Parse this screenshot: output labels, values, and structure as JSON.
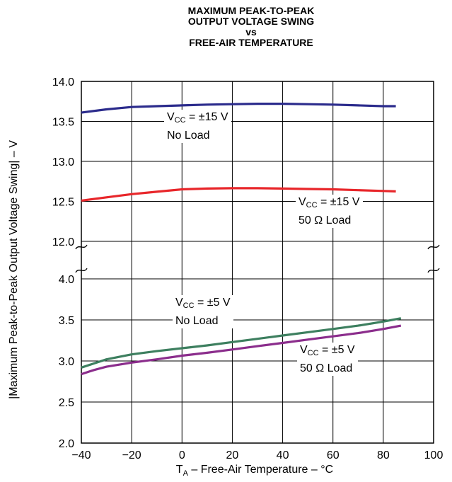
{
  "chart_data": {
    "type": "line",
    "title_lines": [
      "MAXIMUM PEAK-TO-PEAK",
      "OUTPUT VOLTAGE SWING",
      "vs",
      "FREE-AIR TEMPERATURE"
    ],
    "xlabel": {
      "main": "T",
      "sub": "A",
      "rest": " – Free-Air Temperature – °C"
    },
    "ylabel": "|Maximum Peak-to-Peak Output Voltage Swing| – V",
    "xlim": [
      -40,
      100
    ],
    "x_ticks": [
      "−40",
      "−20",
      "0",
      "20",
      "40",
      "60",
      "80",
      "100"
    ],
    "y_ticks_upper": [
      "14.0",
      "13.5",
      "13.0",
      "12.5",
      "12.0"
    ],
    "y_ticks_lower": [
      "4.0",
      "3.5",
      "3.0",
      "2.5",
      "2.0"
    ],
    "ylim_upper": [
      12.0,
      14.0
    ],
    "ylim_lower": [
      2.0,
      4.0
    ],
    "axis_break": "between 12.0 and 4.0",
    "grid": true,
    "series": [
      {
        "color": "#2b2b8c",
        "panel": "upper",
        "x": [
          -40,
          -30,
          -20,
          -10,
          0,
          10,
          20,
          30,
          40,
          50,
          60,
          70,
          80,
          85
        ],
        "y": [
          13.61,
          13.65,
          13.68,
          13.69,
          13.7,
          13.71,
          13.715,
          13.72,
          13.72,
          13.715,
          13.71,
          13.7,
          13.69,
          13.69
        ]
      },
      {
        "color": "#e8262a",
        "panel": "upper",
        "x": [
          -40,
          -30,
          -20,
          -10,
          0,
          10,
          20,
          30,
          40,
          50,
          60,
          70,
          80,
          85
        ],
        "y": [
          12.51,
          12.55,
          12.59,
          12.62,
          12.65,
          12.66,
          12.665,
          12.665,
          12.66,
          12.655,
          12.65,
          12.64,
          12.63,
          12.625
        ]
      },
      {
        "color": "#3d7f5f",
        "panel": "lower",
        "x": [
          -40,
          -35,
          -30,
          -20,
          -10,
          0,
          10,
          20,
          30,
          40,
          50,
          60,
          70,
          80,
          87
        ],
        "y": [
          2.92,
          2.97,
          3.02,
          3.08,
          3.12,
          3.155,
          3.19,
          3.23,
          3.27,
          3.31,
          3.35,
          3.39,
          3.43,
          3.48,
          3.52
        ]
      },
      {
        "color": "#8b2d8c",
        "panel": "lower",
        "x": [
          -40,
          -35,
          -30,
          -20,
          -10,
          0,
          10,
          20,
          30,
          40,
          50,
          60,
          70,
          80,
          87
        ],
        "y": [
          2.84,
          2.89,
          2.93,
          2.98,
          3.02,
          3.065,
          3.1,
          3.14,
          3.18,
          3.22,
          3.26,
          3.3,
          3.34,
          3.39,
          3.43
        ]
      }
    ],
    "annotations": [
      {
        "line1_main": "V",
        "line1_sub": "CC",
        "line1_rest": " = ±15 V",
        "line2": "No Load"
      },
      {
        "line1_main": "V",
        "line1_sub": "CC",
        "line1_rest": " = ±15 V",
        "line2": "50 Ω Load"
      },
      {
        "line1_main": "V",
        "line1_sub": "CC",
        "line1_rest": " = ±5 V",
        "line2": "No Load"
      },
      {
        "line1_main": "V",
        "line1_sub": "CC",
        "line1_rest": " = ±5 V",
        "line2": "50 Ω Load"
      }
    ]
  }
}
